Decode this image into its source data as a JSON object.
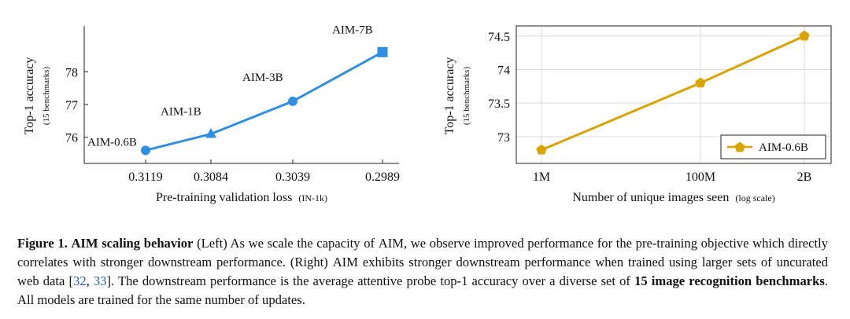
{
  "chart_data": [
    {
      "type": "line",
      "ylabel": "Top-1 accuracy",
      "ylabel_sub": "(15 benchmarks)",
      "xlabel": "Pre-training validation loss",
      "xlabel_sub": "(IN-1k)",
      "x_categories": [
        "0.3119",
        "0.3084",
        "0.3039",
        "0.2989"
      ],
      "y_ticks": [
        76,
        77,
        78
      ],
      "ylim": [
        75.2,
        79.4
      ],
      "grid": false,
      "color": "#2f8fe0",
      "points": [
        {
          "x": "0.3119",
          "y": 75.6,
          "label": "AIM-0.6B",
          "marker": "circle"
        },
        {
          "x": "0.3084",
          "y": 76.1,
          "label": "AIM-1B",
          "marker": "triangle"
        },
        {
          "x": "0.3039",
          "y": 77.1,
          "label": "AIM-3B",
          "marker": "circle"
        },
        {
          "x": "0.2989",
          "y": 78.6,
          "label": "AIM-7B",
          "marker": "square"
        }
      ]
    },
    {
      "type": "line",
      "ylabel": "Top-1 accuracy",
      "ylabel_sub": "(15 benchmarks)",
      "xlabel": "Number of unique images seen",
      "xlabel_sub": "(log scale)",
      "x_scale": "log",
      "x_ticks": [
        "1M",
        "100M",
        "2B"
      ],
      "y_ticks": [
        73,
        73.5,
        74,
        74.5
      ],
      "ylim": [
        72.6,
        74.65
      ],
      "grid": true,
      "legend": "bottom-right",
      "color": "#d9a400",
      "series": [
        {
          "name": "AIM-0.6B",
          "marker": "pentagon",
          "x": [
            "1M",
            "100M",
            "2B"
          ],
          "y": [
            72.8,
            73.8,
            74.5
          ]
        }
      ]
    }
  ],
  "caption": {
    "fig_label": "Figure 1.",
    "title_sc": "AIM",
    "title_rest": "scaling behavior",
    "t1": " (Left) As we scale the capacity of ",
    "aim1": "AIM",
    "t2": ", we observe improved performance for the pre-training objective which directly correlates with stronger downstream performance. (Right) ",
    "aim2": "AIM",
    "t3": " exhibits stronger downstream performance when trained using larger sets of uncurated web data [",
    "ref1": "32",
    "t4": ", ",
    "ref2": "33",
    "t5": "]. The downstream performance is the average attentive probe top-1 accuracy over a diverse set of ",
    "bold2": "15 image recognition benchmarks",
    "t6": ". All models are trained for the same number of updates."
  }
}
